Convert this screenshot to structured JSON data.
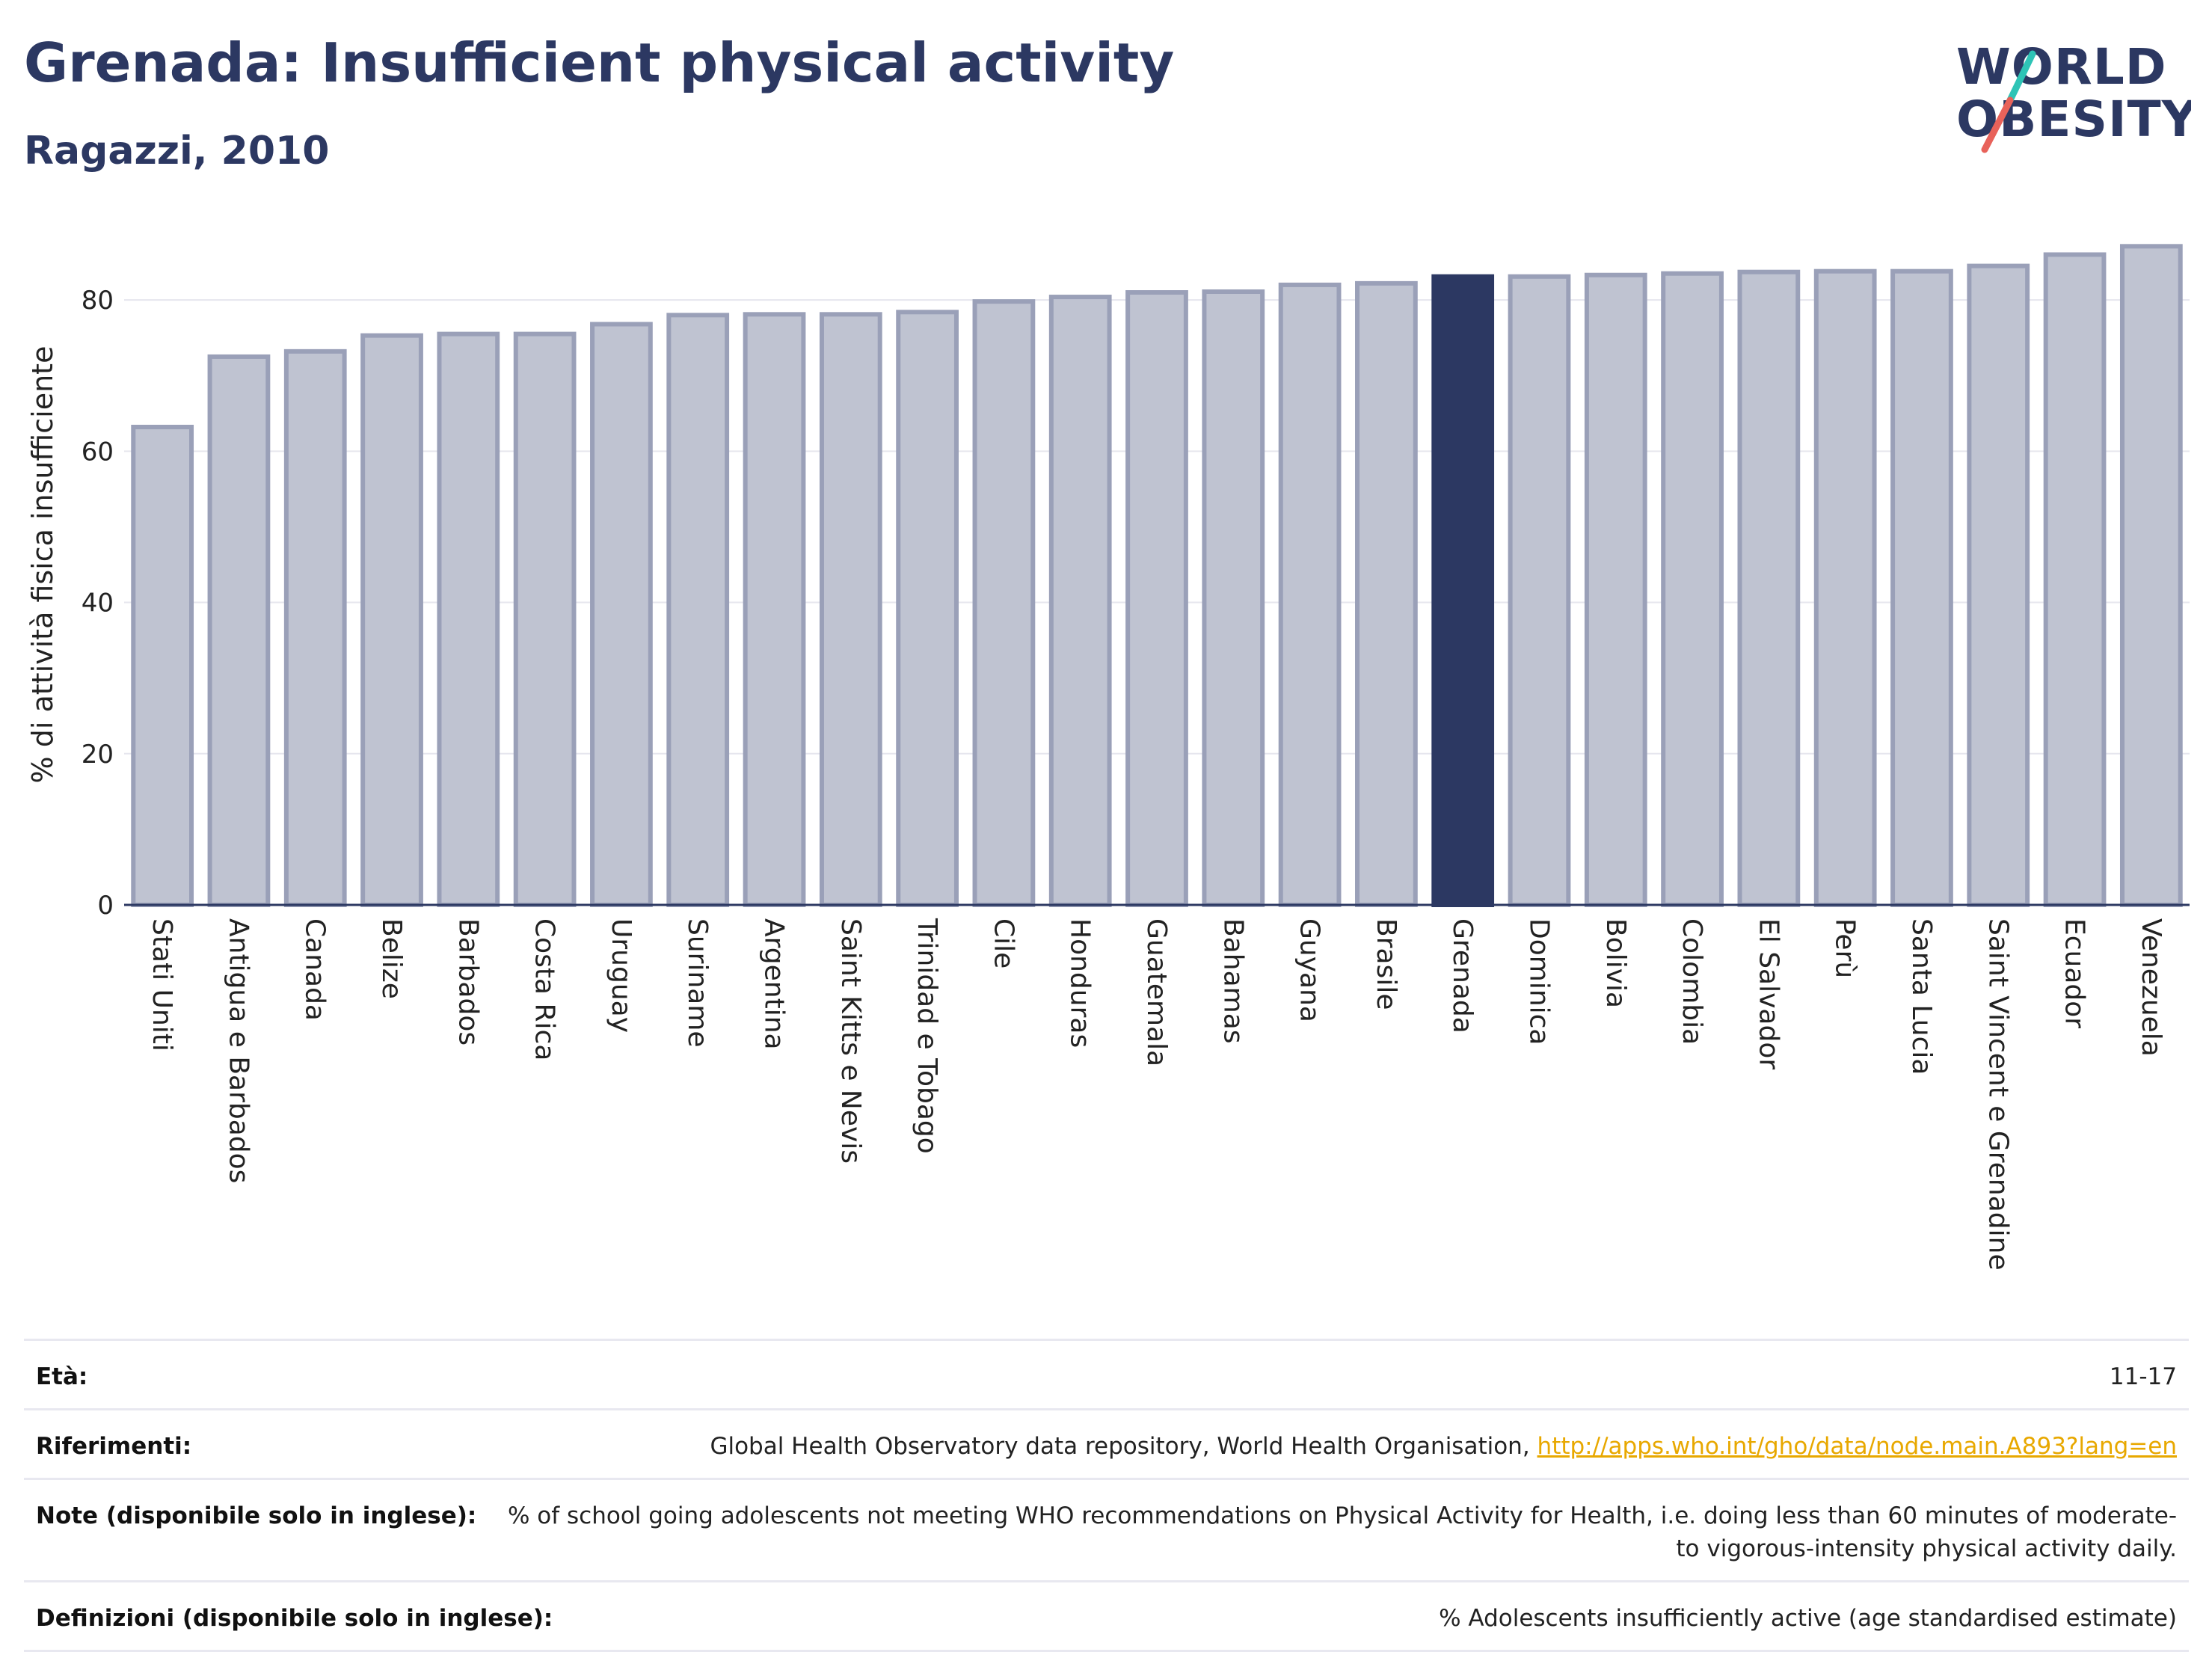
{
  "header": {
    "title": "Grenada: Insufficient physical activity",
    "subtitle": "Ragazzi, 2010"
  },
  "logo": {
    "line1": "WORLD",
    "line2": "OBESITY",
    "colors": {
      "text": "#2c3862",
      "slash_top": "#2ec4b6",
      "slash_bottom": "#e8625a"
    }
  },
  "chart_data": {
    "type": "bar",
    "ylabel": "% di attività fisica insufficiente",
    "xlabel": "",
    "ylim": [
      0,
      90
    ],
    "yticks": [
      0,
      20,
      40,
      60,
      80
    ],
    "grid": true,
    "highlight": "Grenada",
    "colors": {
      "bar": "#bfc3d1",
      "bar_edge": "#9aa0b8",
      "highlight": "#2c3862"
    },
    "categories": [
      "Stati Uniti",
      "Antigua e Barbados",
      "Canada",
      "Belize",
      "Barbados",
      "Costa Rica",
      "Uruguay",
      "Suriname",
      "Argentina",
      "Saint Kitts e Nevis",
      "Trinidad e Tobago",
      "Cile",
      "Honduras",
      "Guatemala",
      "Bahamas",
      "Guyana",
      "Brasile",
      "Grenada",
      "Dominica",
      "Bolivia",
      "Colombia",
      "El Salvador",
      "Perù",
      "Santa Lucia",
      "Saint Vincent e Grenadine",
      "Ecuador",
      "Venezuela"
    ],
    "values": [
      63.2,
      72.5,
      73.2,
      75.3,
      75.5,
      75.5,
      76.8,
      78.0,
      78.1,
      78.1,
      78.4,
      79.8,
      80.4,
      81.0,
      81.1,
      82.0,
      82.2,
      83.1,
      83.1,
      83.3,
      83.5,
      83.7,
      83.8,
      83.8,
      84.5,
      86.0,
      87.1
    ]
  },
  "info": {
    "rows": [
      {
        "key": "Età:",
        "value": "11-17"
      },
      {
        "key": "Riferimenti:",
        "value": "Global Health Observatory data repository, World Health Organisation, ",
        "link": "http://apps.who.int/gho/data/node.main.A893?lang=en"
      },
      {
        "key": "Note (disponibile solo in inglese):",
        "value": "% of school going adolescents not meeting WHO recommendations on Physical Activity for Health, i.e. doing less than 60 minutes of moderate- to vigorous-intensity physical activity daily."
      },
      {
        "key": "Definizioni (disponibile solo in inglese):",
        "value": "% Adolescents insufficiently active (age standardised estimate)"
      }
    ]
  }
}
